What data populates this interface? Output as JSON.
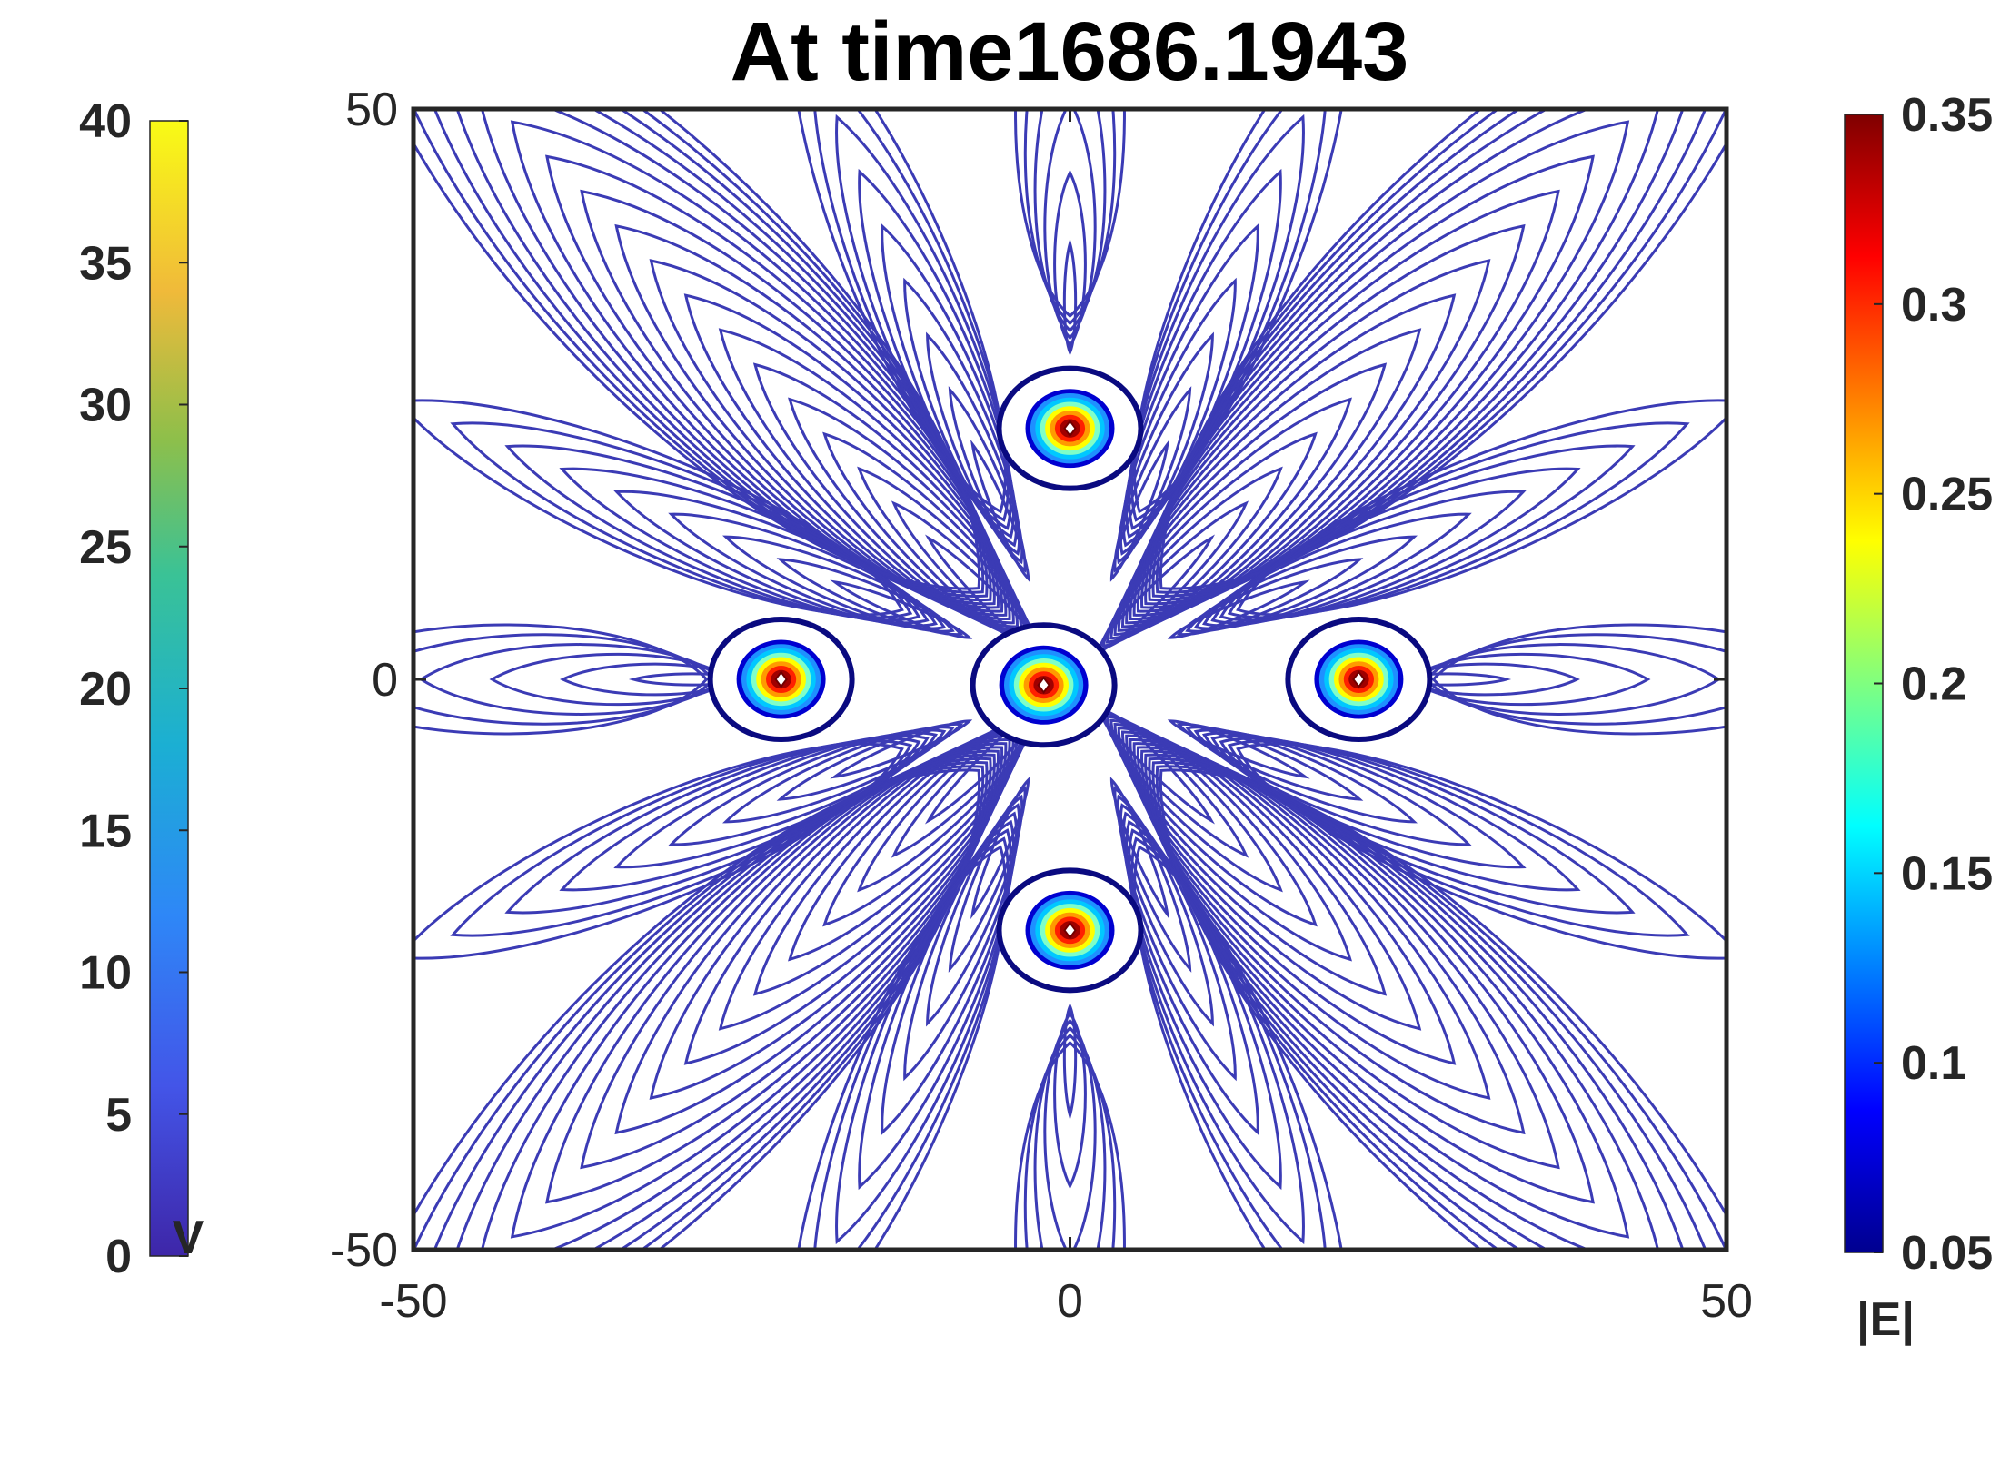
{
  "chart_data": {
    "type": "contour",
    "title": "At time1686.1943",
    "xlim": [
      -50,
      50
    ],
    "ylim": [
      -50,
      50
    ],
    "x_ticks": [
      "-50",
      "0",
      "50"
    ],
    "y_ticks": [
      "50",
      "0",
      "-50"
    ],
    "grid": false,
    "field_colorbar": {
      "label": "|E|",
      "position": "right",
      "colormap": "jet",
      "range": [
        0.05,
        0.35
      ],
      "ticks": [
        "0.35",
        "0.3",
        "0.25",
        "0.2",
        "0.15",
        "0.1",
        "0.05"
      ]
    },
    "potential_colorbar": {
      "label": "V",
      "position": "left",
      "colormap": "parula",
      "range": [
        0,
        40
      ],
      "ticks": [
        "40",
        "35",
        "30",
        "25",
        "20",
        "15",
        "10",
        "5",
        "0"
      ]
    },
    "vortex_centers": [
      {
        "x": 0,
        "y": 22
      },
      {
        "x": -22,
        "y": 0
      },
      {
        "x": -2,
        "y": -0.5
      },
      {
        "x": 22,
        "y": 0
      },
      {
        "x": 0,
        "y": -22
      }
    ],
    "colors": {
      "contour_line": "#3b3bb5",
      "vortex_ring": "#0a0a80",
      "axes_box": "#262626"
    }
  }
}
